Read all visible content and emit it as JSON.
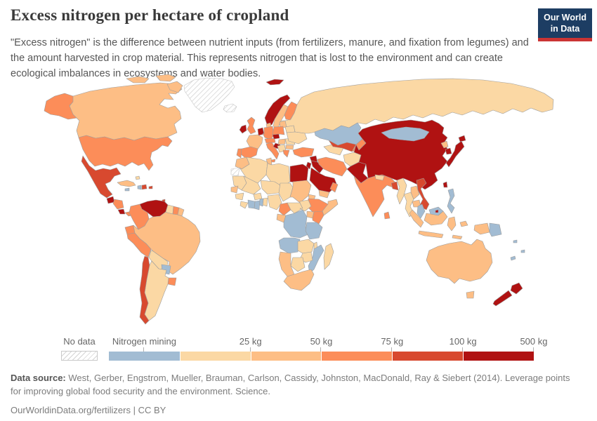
{
  "header": {
    "title": "Excess nitrogen per hectare of cropland",
    "subtitle": "\"Excess nitrogen\" is the difference between nutrient inputs (from fertilizers, manure, and fixation from legumes) and the amount harvested in crop material. This represents nitrogen that is lost to the environment and can create ecological imbalances in ecosystems and water bodies.",
    "logo": {
      "line1": "Our World",
      "line2": "in Data",
      "bg_color": "#1d3d63",
      "bar_color": "#cb3434"
    }
  },
  "legend": {
    "no_data_label": "No data",
    "bins": [
      {
        "label": "Nitrogen mining",
        "color": "#a2bcd3",
        "label_align": "center"
      },
      {
        "label": "25 kg",
        "color": "#fbd8a4",
        "label_align": "right"
      },
      {
        "label": "50 kg",
        "color": "#fdbe85",
        "label_align": "right"
      },
      {
        "label": "75 kg",
        "color": "#fc8d59",
        "label_align": "right"
      },
      {
        "label": "100 kg",
        "color": "#d8492f",
        "label_align": "right"
      },
      {
        "label": "500 kg",
        "color": "#b01212",
        "label_align": "right"
      }
    ]
  },
  "footer": {
    "source_prefix": "Data source:",
    "source_text": " West, Gerber, Engstrom, Mueller, Brauman, Carlson, Cassidy, Johnston, MacDonald, Ray & Siebert (2014). Leverage points for improving global food security and the environment. Science.",
    "link_line": "OurWorldinData.org/fertilizers | CC BY"
  },
  "chart_data": {
    "type": "choropleth",
    "title": "Excess nitrogen per hectare of cropland",
    "unit": "kg",
    "bin_thresholds": [
      0,
      25,
      50,
      75,
      100,
      500
    ],
    "bin_labels": [
      "No data",
      "Nitrogen mining",
      "0-25 kg",
      "25-50 kg",
      "50-75 kg",
      "75-100 kg",
      "100-500 kg"
    ],
    "bin_colors": {
      "no_data": "hatch",
      "nitrogen_mining": "#a2bcd3",
      "0-25": "#fbd8a4",
      "25-50": "#fdbe85",
      "50-75": "#fc8d59",
      "75-100": "#d8492f",
      "100-500": "#b01212"
    },
    "countries": {
      "united-states": "50-75",
      "canada": "25-50",
      "greenland": "no_data",
      "iceland": "no_data",
      "mexico": "75-100",
      "guatemala": "100-500",
      "honduras-nicaragua": "50-75",
      "costa-rica": "100-500",
      "panama": "50-75",
      "cuba": "25-50",
      "jamaica": "nitrogen_mining",
      "haiti": "nitrogen_mining",
      "dominican-republic": "75-100",
      "puerto-rico": "75-100",
      "bahamas": "0-25",
      "trinidad-and-tobago": "75-100",
      "venezuela": "100-500",
      "colombia": "50-75",
      "guyana": "0-25",
      "suriname": "50-75",
      "french-guiana": "25-50",
      "ecuador": "50-75",
      "peru": "50-75",
      "brazil": "25-50",
      "bolivia": "0-25",
      "paraguay": "nitrogen_mining",
      "uruguay": "50-75",
      "argentina": "0-25",
      "chile": "75-100",
      "norway": "100-500",
      "sweden": "25-50",
      "finland": "50-75",
      "baltic-states": "25-50",
      "denmark": "25-50",
      "united-kingdom": "50-75",
      "ireland": "100-500",
      "netherlands-belgium": "100-500",
      "germany": "50-75",
      "france": "25-50",
      "spain": "50-75",
      "portugal": "50-75",
      "switzerland-austria": "50-75",
      "czechia": "100-500",
      "poland": "50-75",
      "italy": "50-75",
      "slovenia-croatia": "100-500",
      "balkans": "0-25",
      "hungary": "25-50",
      "romania": "0-25",
      "bulgaria": "25-50",
      "greece": "50-75",
      "belarus": "0-25",
      "ukraine": "0-25",
      "russia": "0-25",
      "kazakhstan": "nitrogen_mining",
      "turkey": "50-75",
      "syria": "100-500",
      "iraq": "100-500",
      "israel-jordan": "100-500",
      "saudi-arabia": "100-500",
      "yemen": "25-50",
      "oman": "50-75",
      "iran": "50-75",
      "turkmenistan": "0-25",
      "uzbekistan": "75-100",
      "kyrgyzstan-tajikistan": "50-75",
      "afghanistan": "0-25",
      "pakistan": "100-500",
      "india": "50-75",
      "nepal": "0-25",
      "bangladesh": "75-100",
      "sri-lanka": "50-75",
      "myanmar": "0-25",
      "thailand": "0-25",
      "laos": "25-50",
      "cambodia": "25-50",
      "vietnam": "75-100",
      "china": "100-500",
      "mongolia": "nitrogen_mining",
      "north-korea": "25-50",
      "south-korea": "100-500",
      "japan": "100-500",
      "taiwan": "100-500",
      "philippines": "nitrogen_mining",
      "malaysia": "nitrogen_mining",
      "brunei": "100-500",
      "indonesia": "25-50",
      "papua-new-guinea": "nitrogen_mining",
      "pacific-islands": "nitrogen_mining",
      "morocco": "25-50",
      "western-sahara": "no_data",
      "algeria": "0-25",
      "tunisia": "25-50",
      "libya": "0-25",
      "egypt": "100-500",
      "mauritania": "0-25",
      "senegal": "25-50",
      "guinea": "0-25",
      "sierra-leone-liberia": "0-25",
      "mali": "0-25",
      "burkina-faso": "0-25",
      "niger": "0-25",
      "chad": "0-25",
      "sudan": "25-50",
      "eritrea": "25-50",
      "ethiopia": "50-75",
      "somalia": "25-50",
      "nigeria": "0-25",
      "benin": "0-25",
      "togo": "nitrogen_mining",
      "ghana": "nitrogen_mining",
      "cote-divoire": "nitrogen_mining",
      "cameroon": "50-75",
      "central-african-republic": "0-25",
      "south-sudan": "0-25",
      "gabon-congo": "25-50",
      "uganda": "25-50",
      "kenya": "50-75",
      "drc": "nitrogen_mining",
      "tanzania": "nitrogen_mining",
      "angola": "nitrogen_mining",
      "zambia": "0-25",
      "malawi": "0-25",
      "mozambique": "nitrogen_mining",
      "zimbabwe": "0-25",
      "botswana": "0-25",
      "namibia": "25-50",
      "south-africa": "25-50",
      "madagascar": "0-25",
      "australia": "25-50",
      "new-zealand": "100-500"
    }
  }
}
